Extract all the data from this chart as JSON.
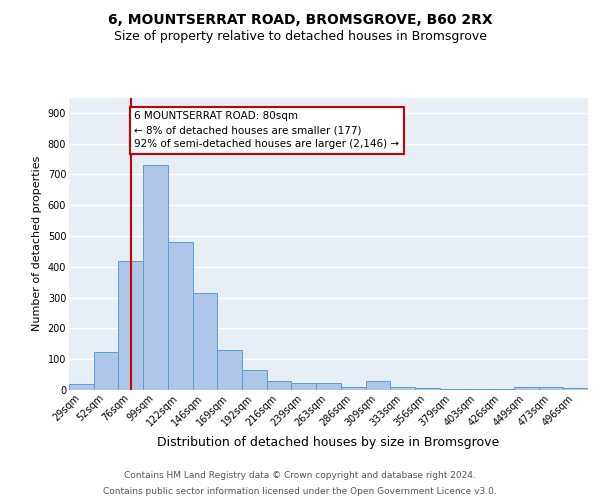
{
  "title1": "6, MOUNTSERRAT ROAD, BROMSGROVE, B60 2RX",
  "title2": "Size of property relative to detached houses in Bromsgrove",
  "xlabel": "Distribution of detached houses by size in Bromsgrove",
  "ylabel": "Number of detached properties",
  "categories": [
    "29sqm",
    "52sqm",
    "76sqm",
    "99sqm",
    "122sqm",
    "146sqm",
    "169sqm",
    "192sqm",
    "216sqm",
    "239sqm",
    "263sqm",
    "286sqm",
    "309sqm",
    "333sqm",
    "356sqm",
    "379sqm",
    "403sqm",
    "426sqm",
    "449sqm",
    "473sqm",
    "496sqm"
  ],
  "values": [
    20,
    125,
    420,
    730,
    480,
    315,
    130,
    65,
    28,
    22,
    22,
    10,
    28,
    10,
    8,
    3,
    2,
    2,
    10,
    10,
    8
  ],
  "bar_color": "#aec6e8",
  "bar_edge_color": "#5b9bd5",
  "background_color": "#e8eef6",
  "grid_color": "#ffffff",
  "red_line_x": 2,
  "annotation_line1": "6 MOUNTSERRAT ROAD: 80sqm",
  "annotation_line2": "← 8% of detached houses are smaller (177)",
  "annotation_line3": "92% of semi-detached houses are larger (2,146) →",
  "annotation_box_color": "#ffffff",
  "annotation_box_edge": "#cc0000",
  "red_line_color": "#cc0000",
  "footer1": "Contains HM Land Registry data © Crown copyright and database right 2024.",
  "footer2": "Contains public sector information licensed under the Open Government Licence v3.0.",
  "ylim": [
    0,
    950
  ],
  "yticks": [
    0,
    100,
    200,
    300,
    400,
    500,
    600,
    700,
    800,
    900
  ],
  "title1_fontsize": 10,
  "title2_fontsize": 9,
  "xlabel_fontsize": 9,
  "ylabel_fontsize": 8,
  "tick_fontsize": 7,
  "annotation_fontsize": 7.5,
  "footer_fontsize": 6.5,
  "fig_bg": "#ffffff"
}
